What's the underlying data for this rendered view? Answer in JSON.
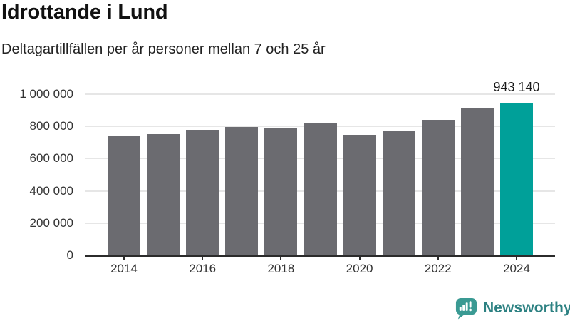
{
  "chart_data": {
    "type": "bar",
    "title": "Idrottande i Lund",
    "subtitle": "Deltagartillfällen per år personer mellan 7 och 25 år",
    "categories": [
      "2014",
      "2015",
      "2016",
      "2017",
      "2018",
      "2019",
      "2020",
      "2021",
      "2022",
      "2023",
      "2024"
    ],
    "values": [
      740000,
      752000,
      781000,
      798000,
      788000,
      820000,
      750000,
      773000,
      842000,
      915000,
      943140
    ],
    "value_label": {
      "index": 10,
      "text": "943 140"
    },
    "highlight": {
      "index": 10,
      "color": "#00a099"
    },
    "bar_color": "#6b6b70",
    "ylim": [
      0,
      1000000
    ],
    "y_ticks": [
      {
        "value": 0,
        "label": "0"
      },
      {
        "value": 200000,
        "label": "200 000"
      },
      {
        "value": 400000,
        "label": "400 000"
      },
      {
        "value": 600000,
        "label": "600 000"
      },
      {
        "value": 800000,
        "label": "800 000"
      },
      {
        "value": 1000000,
        "label": "1 000 000"
      }
    ],
    "x_tick_labels": [
      "2014",
      "2016",
      "2018",
      "2020",
      "2022",
      "2024"
    ],
    "xlabel": "",
    "ylabel": "",
    "grid": true,
    "legend": false,
    "gridline_color": "#e6e6e6",
    "axis_color": "#2b2b2b",
    "tick_label_color": "#333333"
  },
  "branding": {
    "logo_text": "Newsworthy",
    "text_color": "#2d8182",
    "icon_color": "#3a9a93",
    "icon": "newsworthy-speech-bubble-bar-chart-icon"
  }
}
